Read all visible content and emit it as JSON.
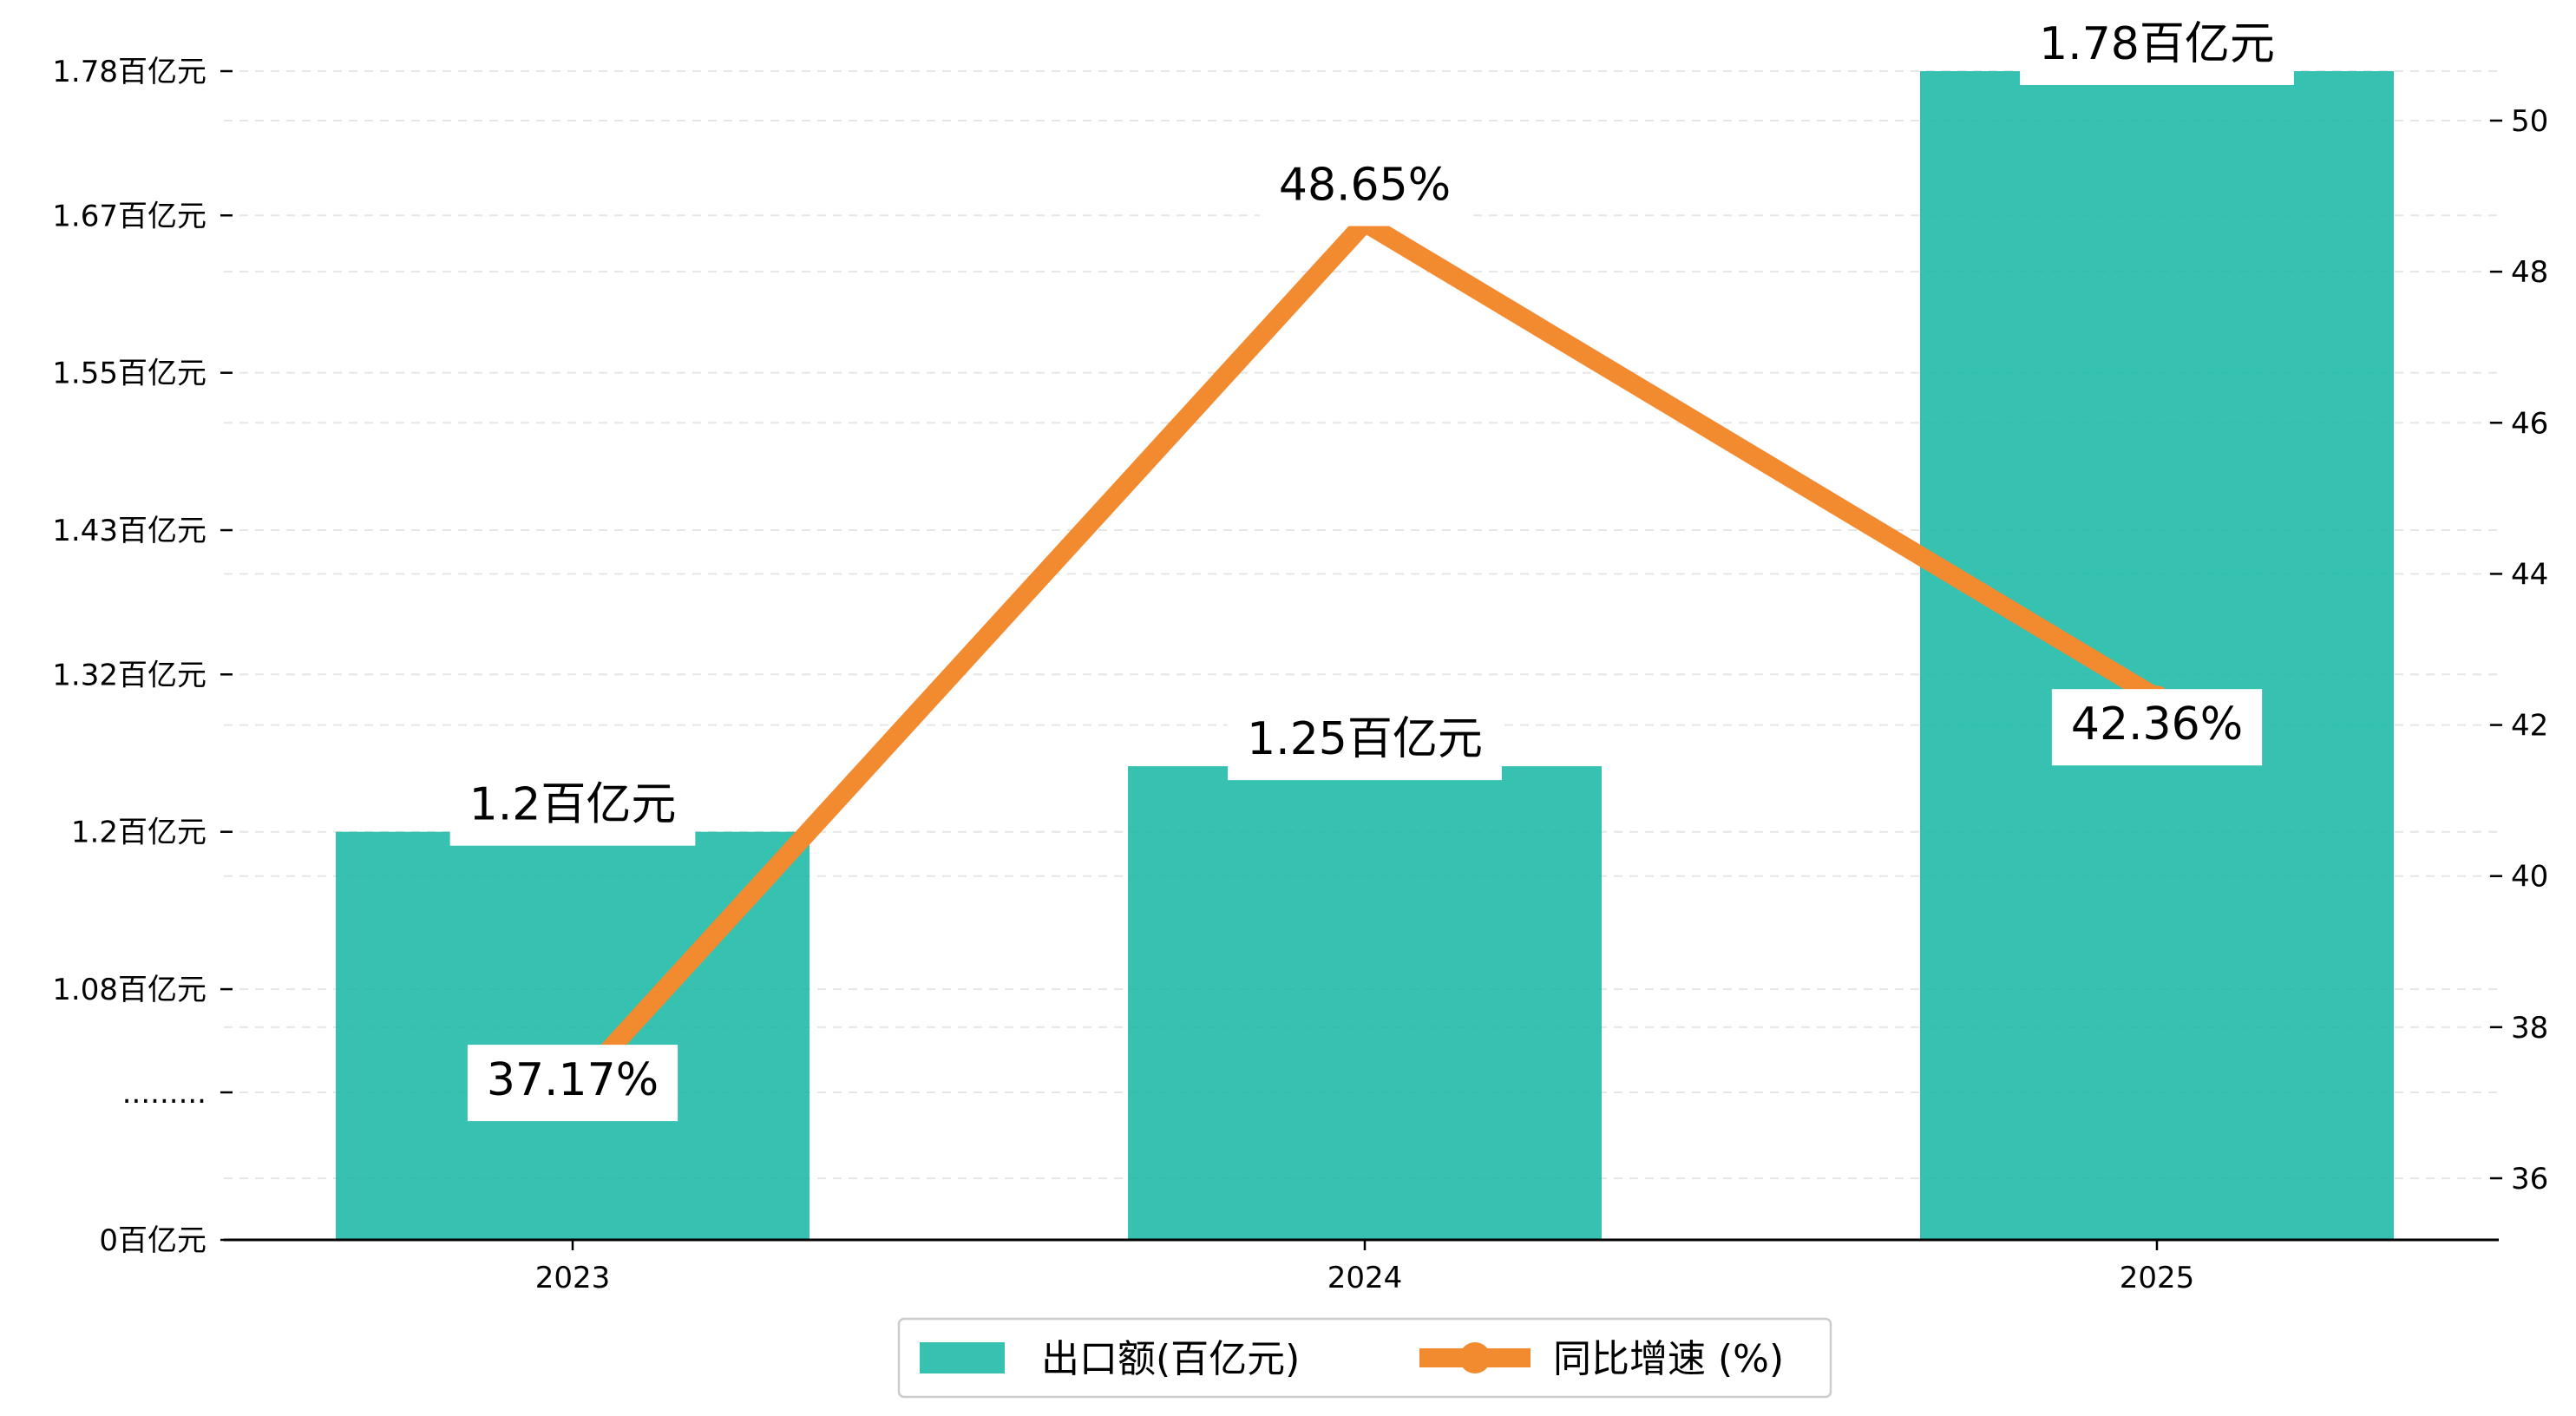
{
  "chart_data": {
    "type": "bar+line",
    "categories": [
      "2023",
      "2024",
      "2025"
    ],
    "series": [
      {
        "name": "出口额(百亿元)",
        "type": "bar",
        "axis": "left",
        "values": [
          1.2,
          1.25,
          1.78
        ],
        "value_labels": [
          "1.2百亿元",
          "1.25百亿元",
          "1.78百亿元"
        ],
        "color": "#1ab8a6"
      },
      {
        "name": "同比增速 (%)",
        "type": "line",
        "axis": "right",
        "values": [
          37.17,
          48.65,
          42.36
        ],
        "value_labels": [
          "37.17%",
          "48.65%",
          "42.36%"
        ],
        "color": "#f28a30"
      }
    ],
    "left_axis": {
      "broken": true,
      "tick_values": [
        0,
        1.08,
        1.2,
        1.32,
        1.43,
        1.55,
        1.67,
        1.78
      ],
      "tick_labels": [
        "0百亿元",
        "1.08百亿元",
        "1.2百亿元",
        "1.32百亿元",
        "1.43百亿元",
        "1.55百亿元",
        "1.67百亿元",
        "1.78百亿元"
      ],
      "break_label": "........."
    },
    "right_axis": {
      "ylim": [
        35.2,
        50.6
      ],
      "ticks": [
        36,
        38,
        40,
        42,
        44,
        46,
        48,
        50
      ]
    },
    "grid": "horizontal-dashed",
    "legend_position": "bottom-center"
  }
}
